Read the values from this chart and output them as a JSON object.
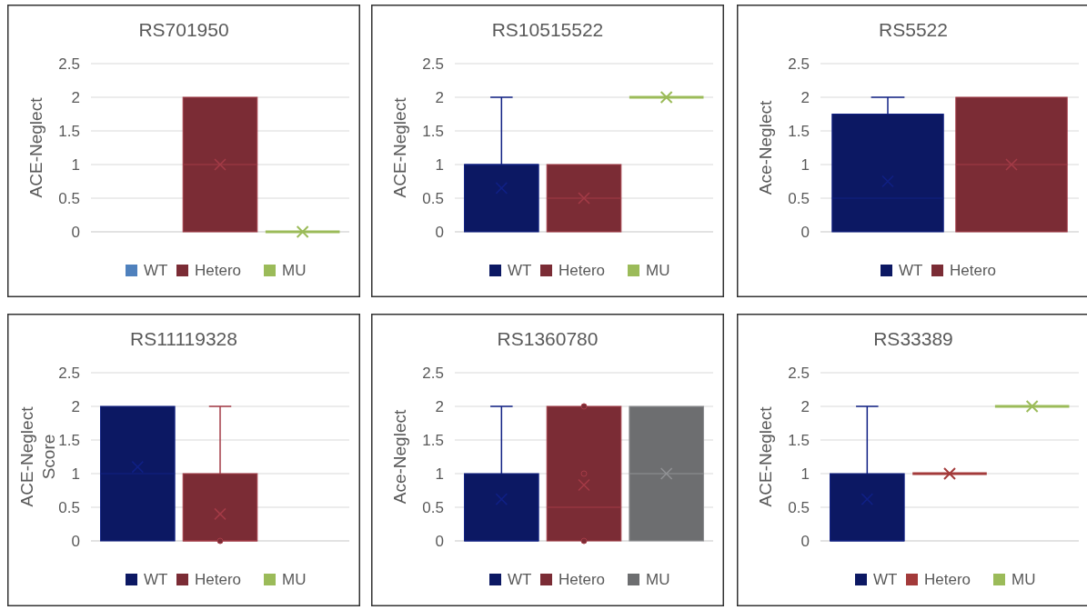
{
  "chart_data": [
    {
      "type": "box",
      "title": "RS701950",
      "ylabel": "ACE-Neglect",
      "categories": [
        null
      ],
      "ylim": [
        0,
        2.5
      ],
      "yticks": [
        0,
        0.5,
        1,
        1.5,
        2,
        2.5
      ],
      "grid": "y",
      "legend": "bottom",
      "series": [
        {
          "name": "WT",
          "color": "#4f81bd",
          "boxes": [
            null
          ]
        },
        {
          "name": "Hetero",
          "color": "#7b2c35",
          "boxes": [
            {
              "low": 0,
              "q1": 0,
              "median": 1,
              "q3": 2,
              "high": 2,
              "mean": 1
            }
          ]
        },
        {
          "name": "MU",
          "color": "#9bbb59",
          "boxes": [
            {
              "low": 0,
              "q1": 0,
              "median": 0,
              "q3": 0,
              "high": 0,
              "mean": 0
            }
          ]
        }
      ]
    },
    {
      "type": "box",
      "title": "RS10515522",
      "ylabel": "ACE-Neglect",
      "categories": [
        null
      ],
      "ylim": [
        0,
        2.5
      ],
      "yticks": [
        0,
        0.5,
        1,
        1.5,
        2,
        2.5
      ],
      "grid": "y",
      "legend": "bottom",
      "series": [
        {
          "name": "WT",
          "color": "#0c1863",
          "boxes": [
            {
              "low": 0,
              "q1": 0,
              "median": 1,
              "q3": 1,
              "high": 2,
              "mean": 0.65
            }
          ]
        },
        {
          "name": "Hetero",
          "color": "#7b2c35",
          "boxes": [
            {
              "low": 0,
              "q1": 0,
              "median": 0.5,
              "q3": 1,
              "high": 1,
              "mean": 0.5
            }
          ]
        },
        {
          "name": "MU",
          "color": "#9bbb59",
          "boxes": [
            {
              "low": 2,
              "q1": 2,
              "median": 2,
              "q3": 2,
              "high": 2,
              "mean": 2
            }
          ]
        }
      ]
    },
    {
      "type": "box",
      "title": "RS5522",
      "ylabel": "Ace-Neglect",
      "categories": [
        null
      ],
      "ylim": [
        0,
        2.5
      ],
      "yticks": [
        0,
        0.5,
        1,
        1.5,
        2,
        2.5
      ],
      "grid": "y",
      "legend": "bottom",
      "series": [
        {
          "name": "WT",
          "color": "#0c1863",
          "boxes": [
            {
              "low": 0,
              "q1": 0,
              "median": 0.5,
              "q3": 1.75,
              "high": 2,
              "mean": 0.75
            }
          ]
        },
        {
          "name": "Hetero",
          "color": "#7b2c35",
          "boxes": [
            {
              "low": 0,
              "q1": 0,
              "median": 1,
              "q3": 2,
              "high": 2,
              "mean": 1
            }
          ]
        }
      ]
    },
    {
      "type": "box",
      "title": "RS11119328",
      "ylabel": "ACE-Neglect Score",
      "categories": [
        null
      ],
      "ylim": [
        0,
        2.5
      ],
      "yticks": [
        0,
        0.5,
        1,
        1.5,
        2,
        2.5
      ],
      "grid": "y",
      "legend": "bottom",
      "series": [
        {
          "name": "WT",
          "color": "#0c1863",
          "boxes": [
            {
              "low": 0,
              "q1": 0,
              "median": 1,
              "q3": 2,
              "high": 2,
              "mean": 1.1
            }
          ]
        },
        {
          "name": "Hetero",
          "color": "#7b2c35",
          "boxes": [
            {
              "low": 0,
              "q1": 0,
              "median": 0,
              "q3": 1,
              "high": 2,
              "mean": 0.4,
              "outliers": [
                0
              ]
            }
          ]
        },
        {
          "name": "MU",
          "color": "#9bbb59",
          "boxes": [
            null
          ]
        }
      ]
    },
    {
      "type": "box",
      "title": "RS1360780",
      "ylabel": "Ace-Neglect",
      "categories": [
        null
      ],
      "ylim": [
        0,
        2.5
      ],
      "yticks": [
        0,
        0.5,
        1,
        1.5,
        2,
        2.5
      ],
      "grid": "y",
      "legend": "bottom",
      "series": [
        {
          "name": "WT",
          "color": "#0c1863",
          "boxes": [
            {
              "low": 0,
              "q1": 0,
              "median": 0,
              "q3": 1,
              "high": 2,
              "mean": 0.62
            }
          ]
        },
        {
          "name": "Hetero",
          "color": "#7b2c35",
          "boxes": [
            {
              "low": 0,
              "q1": 0,
              "median": 0.5,
              "q3": 2,
              "high": 2,
              "mean": 0.83,
              "outliers": [
                0,
                1,
                2
              ]
            }
          ]
        },
        {
          "name": "MU",
          "color": "#6d6e70",
          "boxes": [
            {
              "low": 0,
              "q1": 0,
              "median": 1,
              "q3": 2,
              "high": 2,
              "mean": 1
            }
          ]
        }
      ]
    },
    {
      "type": "box",
      "title": "RS33389",
      "ylabel": "ACE-Neglect",
      "categories": [
        null
      ],
      "ylim": [
        0,
        2.5
      ],
      "yticks": [
        0,
        0.5,
        1,
        1.5,
        2,
        2.5
      ],
      "grid": "y",
      "legend": "bottom",
      "series": [
        {
          "name": "WT",
          "color": "#0c1863",
          "boxes": [
            {
              "low": 0,
              "q1": 0,
              "median": 0,
              "q3": 1,
              "high": 2,
              "mean": 0.62
            }
          ]
        },
        {
          "name": "Hetero",
          "color": "#a33a3a",
          "boxes": [
            {
              "low": 1,
              "q1": 1,
              "median": 1,
              "q3": 1,
              "high": 1,
              "mean": 1
            }
          ]
        },
        {
          "name": "MU",
          "color": "#9bbb59",
          "boxes": [
            {
              "low": 2,
              "q1": 2,
              "median": 2,
              "q3": 2,
              "high": 2,
              "mean": 2
            }
          ]
        }
      ]
    }
  ]
}
